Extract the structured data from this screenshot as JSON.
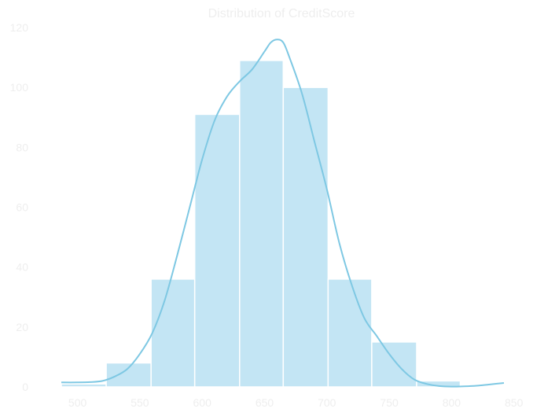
{
  "chart_data": {
    "type": "bar",
    "title": "Distribution of CreditScore",
    "xlabel": "",
    "ylabel": "",
    "bins": [
      {
        "start": 487,
        "end": 523,
        "count": 1
      },
      {
        "start": 523,
        "end": 559,
        "count": 8
      },
      {
        "start": 559,
        "end": 594,
        "count": 36
      },
      {
        "start": 594,
        "end": 630,
        "count": 91
      },
      {
        "start": 630,
        "end": 665,
        "count": 109
      },
      {
        "start": 665,
        "end": 701,
        "count": 100
      },
      {
        "start": 701,
        "end": 736,
        "count": 36
      },
      {
        "start": 736,
        "end": 772,
        "count": 15
      },
      {
        "start": 772,
        "end": 807,
        "count": 2
      }
    ],
    "kde": {
      "x": [
        487,
        500,
        510,
        520,
        530,
        540,
        550,
        560,
        570,
        580,
        590,
        600,
        610,
        620,
        630,
        640,
        650,
        655,
        660,
        665,
        670,
        680,
        690,
        700,
        710,
        720,
        730,
        740,
        750,
        760,
        770,
        780,
        790,
        800,
        810,
        820,
        830,
        842
      ],
      "y": [
        1.5,
        1.5,
        1.6,
        2.0,
        3.5,
        6,
        11,
        18,
        29,
        44,
        60,
        76,
        89,
        97,
        102,
        106,
        112,
        115,
        116,
        115,
        110,
        98,
        82,
        66,
        48,
        34,
        23,
        17,
        11,
        6,
        2.5,
        1,
        0.3,
        0.1,
        0.2,
        0.4,
        0.8,
        1.3
      ]
    },
    "xlim": [
      487,
      842
    ],
    "ylim": [
      0,
      120
    ],
    "xticks": [
      500,
      550,
      600,
      650,
      700,
      750,
      800,
      850
    ],
    "yticks": [
      0,
      20,
      40,
      60,
      80,
      100,
      120
    ],
    "grid": false,
    "colors": {
      "bar_fill": "#c3e5f4",
      "bar_edge": "#ffffff",
      "line": "#7ec8e3",
      "text": "#eeeeee"
    }
  }
}
